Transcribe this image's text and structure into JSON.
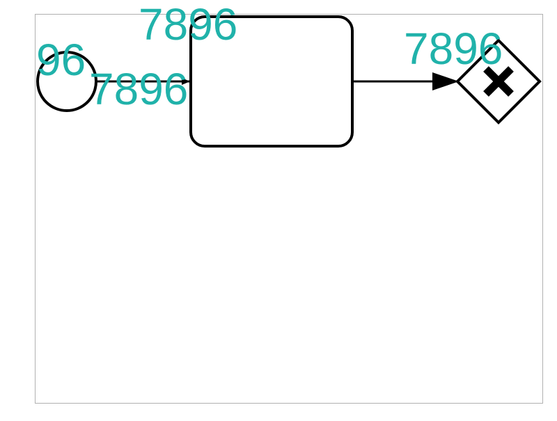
{
  "diagram": {
    "labels": {
      "start_event": "96",
      "task_top": "7896",
      "flow_start_to_task": "7896",
      "flow_task_to_gateway": "7896"
    },
    "colors": {
      "label": "#20b2aa",
      "stroke": "#000000",
      "frame": "#b0b0b0",
      "background": "#ffffff"
    },
    "icons": {
      "gateway_marker": "x-icon"
    }
  }
}
